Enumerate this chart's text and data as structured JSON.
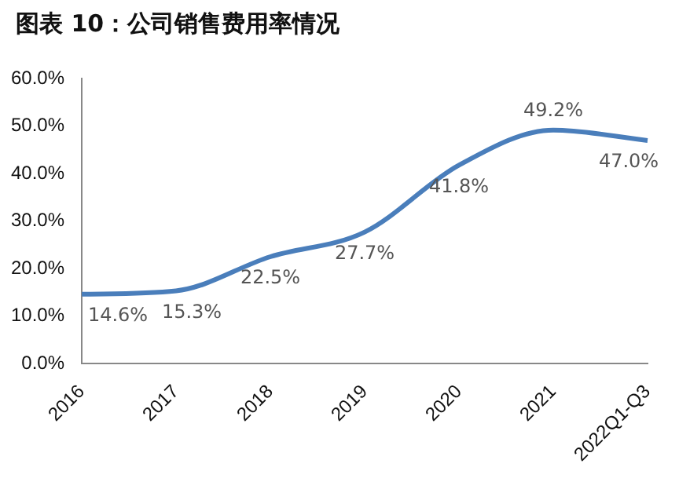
{
  "chart_data": {
    "type": "line",
    "title": "图表 10：公司销售费用率情况",
    "categories": [
      "2016",
      "2017",
      "2018",
      "2019",
      "2020",
      "2021",
      "2022Q1-Q3"
    ],
    "series": [
      {
        "color": "#4a7ebb",
        "values": [
          14.6,
          15.3,
          22.5,
          27.7,
          41.8,
          49.2,
          47.0
        ],
        "value_labels": [
          "14.6%",
          "15.3%",
          "22.5%",
          "27.7%",
          "41.8%",
          "49.2%",
          "47.0%"
        ]
      }
    ],
    "ylim": [
      0,
      60
    ],
    "yticks": [
      {
        "value": 0,
        "label": "0.0%"
      },
      {
        "value": 10,
        "label": "10.0%"
      },
      {
        "value": 20,
        "label": "20.0%"
      },
      {
        "value": 30,
        "label": "30.0%"
      },
      {
        "value": 40,
        "label": "40.0%"
      },
      {
        "value": 50,
        "label": "50.0%"
      },
      {
        "value": 60,
        "label": "60.0%"
      }
    ],
    "grid": false,
    "legend": false,
    "marker": "none",
    "line_style": "solid"
  }
}
